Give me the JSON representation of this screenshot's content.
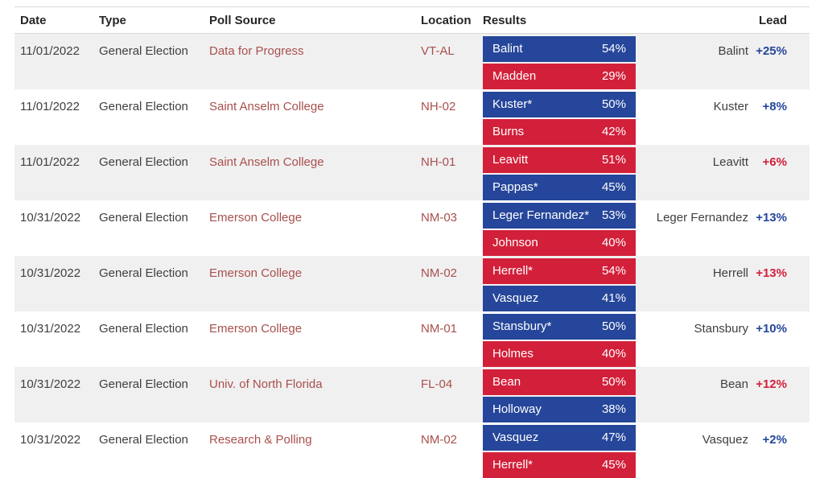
{
  "colors": {
    "dem_bar": "#25469a",
    "rep_bar": "#d2203a",
    "link_red": "#a8504c",
    "row_stripe": "#f1f0f1",
    "border": "#d9d9d9",
    "text_dark": "#3f3f3f",
    "header_text": "#262626"
  },
  "table": {
    "columns": [
      "Date",
      "Type",
      "Poll Source",
      "Location",
      "Results",
      "Lead"
    ],
    "rows": [
      {
        "date": "11/01/2022",
        "type": "General Election",
        "source": "Data for Progress",
        "location": "VT-AL",
        "results": [
          {
            "name": "Balint",
            "pct": "54%",
            "party": "dem"
          },
          {
            "name": "Madden",
            "pct": "29%",
            "party": "rep"
          }
        ],
        "lead": {
          "name": "Balint",
          "margin": "+25%",
          "party": "dem"
        }
      },
      {
        "date": "11/01/2022",
        "type": "General Election",
        "source": "Saint Anselm College",
        "location": "NH-02",
        "results": [
          {
            "name": "Kuster*",
            "pct": "50%",
            "party": "dem"
          },
          {
            "name": "Burns",
            "pct": "42%",
            "party": "rep"
          }
        ],
        "lead": {
          "name": "Kuster",
          "margin": "+8%",
          "party": "dem"
        }
      },
      {
        "date": "11/01/2022",
        "type": "General Election",
        "source": "Saint Anselm College",
        "location": "NH-01",
        "results": [
          {
            "name": "Leavitt",
            "pct": "51%",
            "party": "rep"
          },
          {
            "name": "Pappas*",
            "pct": "45%",
            "party": "dem"
          }
        ],
        "lead": {
          "name": "Leavitt",
          "margin": "+6%",
          "party": "rep"
        }
      },
      {
        "date": "10/31/2022",
        "type": "General Election",
        "source": "Emerson College",
        "location": "NM-03",
        "results": [
          {
            "name": "Leger Fernandez*",
            "pct": "53%",
            "party": "dem"
          },
          {
            "name": "Johnson",
            "pct": "40%",
            "party": "rep"
          }
        ],
        "lead": {
          "name": "Leger Fernandez",
          "margin": "+13%",
          "party": "dem"
        }
      },
      {
        "date": "10/31/2022",
        "type": "General Election",
        "source": "Emerson College",
        "location": "NM-02",
        "results": [
          {
            "name": "Herrell*",
            "pct": "54%",
            "party": "rep"
          },
          {
            "name": "Vasquez",
            "pct": "41%",
            "party": "dem"
          }
        ],
        "lead": {
          "name": "Herrell",
          "margin": "+13%",
          "party": "rep"
        }
      },
      {
        "date": "10/31/2022",
        "type": "General Election",
        "source": "Emerson College",
        "location": "NM-01",
        "results": [
          {
            "name": "Stansbury*",
            "pct": "50%",
            "party": "dem"
          },
          {
            "name": "Holmes",
            "pct": "40%",
            "party": "rep"
          }
        ],
        "lead": {
          "name": "Stansbury",
          "margin": "+10%",
          "party": "dem"
        }
      },
      {
        "date": "10/31/2022",
        "type": "General Election",
        "source": "Univ. of North Florida",
        "location": "FL-04",
        "results": [
          {
            "name": "Bean",
            "pct": "50%",
            "party": "rep"
          },
          {
            "name": "Holloway",
            "pct": "38%",
            "party": "dem"
          }
        ],
        "lead": {
          "name": "Bean",
          "margin": "+12%",
          "party": "rep"
        }
      },
      {
        "date": "10/31/2022",
        "type": "General Election",
        "source": "Research & Polling",
        "location": "NM-02",
        "results": [
          {
            "name": "Vasquez",
            "pct": "47%",
            "party": "dem"
          },
          {
            "name": "Herrell*",
            "pct": "45%",
            "party": "rep"
          }
        ],
        "lead": {
          "name": "Vasquez",
          "margin": "+2%",
          "party": "dem"
        }
      }
    ]
  }
}
